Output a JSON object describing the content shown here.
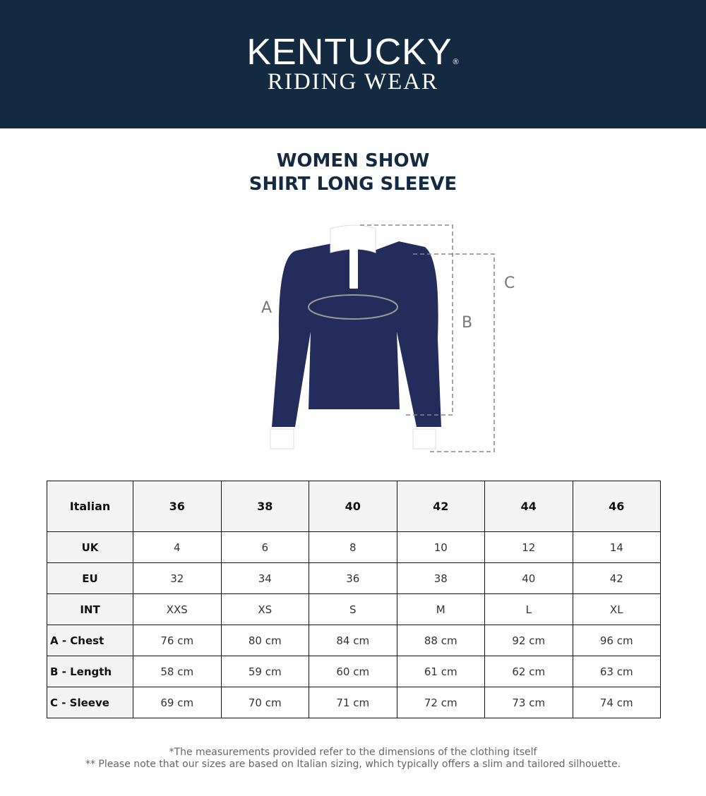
{
  "brand": {
    "name": "KENTUCKY",
    "registered": "®",
    "subtitle": "RIDING WEAR",
    "header_color": "#142a41"
  },
  "title": {
    "line1": "WOMEN SHOW",
    "line2": "SHIRT LONG SLEEVE"
  },
  "figure": {
    "labels": {
      "a": "A",
      "b": "B",
      "c": "C"
    },
    "shirt_color": "#232c5a"
  },
  "table": {
    "header": [
      "Italian",
      "36",
      "38",
      "40",
      "42",
      "44",
      "46"
    ],
    "rows": [
      [
        "UK",
        "4",
        "6",
        "8",
        "10",
        "12",
        "14"
      ],
      [
        "EU",
        "32",
        "34",
        "36",
        "38",
        "40",
        "42"
      ],
      [
        "INT",
        "XXS",
        "XS",
        "S",
        "M",
        "L",
        "XL"
      ],
      [
        "A - Chest",
        "76 cm",
        "80 cm",
        "84 cm",
        "88 cm",
        "92 cm",
        "96 cm"
      ],
      [
        "B - Length",
        "58 cm",
        "59 cm",
        "60 cm",
        "61 cm",
        "62 cm",
        "63 cm"
      ],
      [
        "C - Sleeve",
        "69 cm",
        "70 cm",
        "71 cm",
        "72 cm",
        "73 cm",
        "74 cm"
      ]
    ]
  },
  "notes": [
    "*The measurements provided refer to the dimensions of the clothing itself",
    "** Please note that our sizes are based on Italian sizing, which typically offers a slim and tailored silhouette."
  ]
}
